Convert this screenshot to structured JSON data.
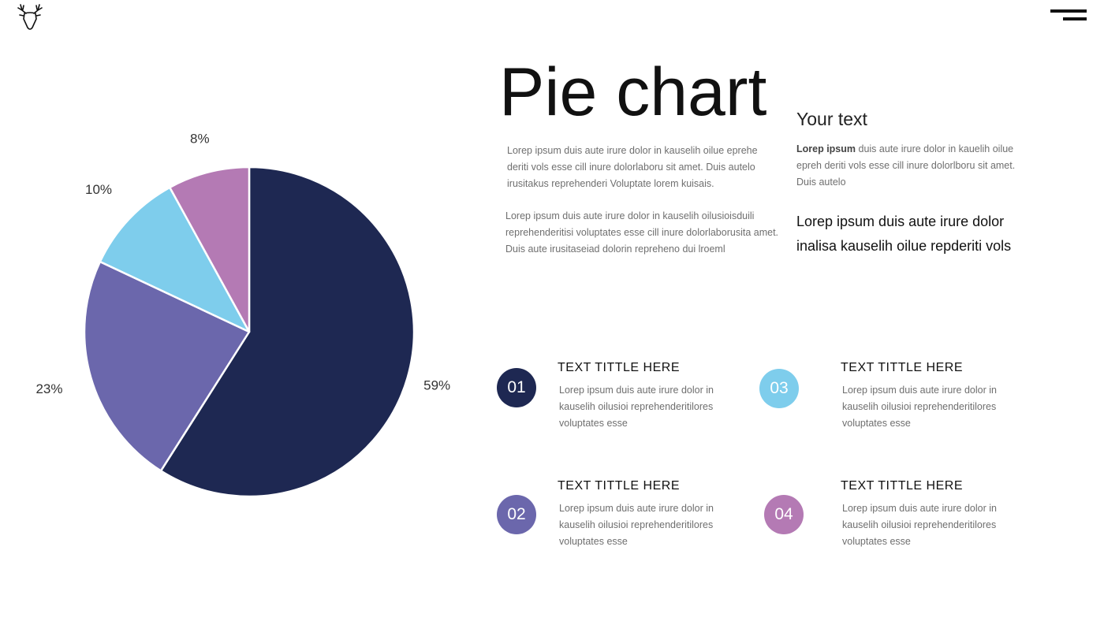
{
  "header": {
    "logo_icon": "deer-head-icon",
    "menu_icon": "hamburger-menu-icon"
  },
  "title": "Pie chart",
  "intro": {
    "p1": [
      "Lorep  ipsum duis aute irure dolor in kauselih oilue eprehe",
      "deriti vols esse cill inure dolorlaboru sit amet. Duis autelo",
      "irusitakus reprehenderi Voluptate lorem kuisais."
    ],
    "p2": [
      "Lorep  ipsum duis aute irure dolor in kauselih oilusioisduili",
      "reprehenderitisi voluptates esse cill inure dolorlaborusita amet.",
      "Duis aute irusitaseiad dolorin repreheno dui lroeml"
    ]
  },
  "side": {
    "title": "Your text",
    "body_bold": "Lorep  ipsum",
    "body_lines": [
      " duis aute irure dolor in kauelih oilue",
      "epreh deriti vols esse cill inure dolorlboru sit amet.",
      "Duis autelo"
    ],
    "highlight": [
      "Lorep  ipsum duis aute irure dolor",
      "inalisa kauselih oilue repderiti vols"
    ]
  },
  "items": [
    {
      "num": "01",
      "color": "#1e2852",
      "title": "TEXT TITTLE HERE",
      "lines": [
        "Lorep  ipsum duis aute irure dolor in",
        "kauselih oilusioi reprehenderitilores",
        "voluptates esse"
      ]
    },
    {
      "num": "02",
      "color": "#6b67ac",
      "title": "TEXT TITTLE HERE",
      "lines": [
        "Lorep  ipsum duis aute irure dolor in",
        "kauselih oilusioi reprehenderitilores",
        "voluptates esse"
      ]
    },
    {
      "num": "03",
      "color": "#7ecdec",
      "title": "TEXT TITTLE HERE",
      "lines": [
        "Lorep  ipsum duis aute irure dolor in",
        "kauselih oilusioi reprehenderitilores",
        "voluptates esse"
      ]
    },
    {
      "num": "04",
      "color": "#b47ab4",
      "title": "TEXT TITTLE HERE",
      "lines": [
        "Lorep  ipsum duis aute irure dolor in",
        "kauselih oilusioi reprehenderitilores",
        "voluptates esse"
      ]
    }
  ],
  "chart_data": {
    "type": "pie",
    "title": "",
    "categories": [
      "01",
      "02",
      "03",
      "04"
    ],
    "values": [
      59,
      23,
      10,
      8
    ],
    "labels": [
      "59%",
      "23%",
      "10%",
      "8%"
    ],
    "colors": [
      "#1e2852",
      "#6b67ac",
      "#7ecdec",
      "#b47ab4"
    ],
    "start": "12 o'clock",
    "direction": "clockwise",
    "legend": "none"
  }
}
